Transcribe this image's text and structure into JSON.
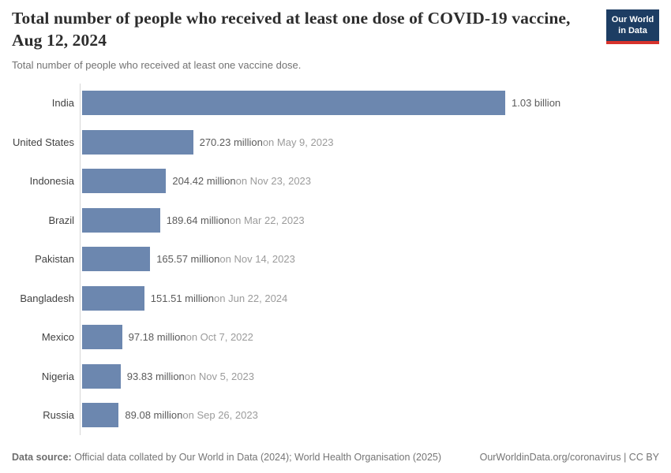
{
  "header": {
    "title": "Total number of people who received at least one dose of COVID-19 vaccine, Aug 12, 2024",
    "subtitle": "Total number of people who received at least one vaccine dose.",
    "logo": {
      "line1": "Our World",
      "line2": "in Data",
      "bg_color": "#1d3d63",
      "accent_color": "#d7332c"
    }
  },
  "chart_data": {
    "type": "bar",
    "orientation": "horizontal",
    "title": "Total number of people who received at least one dose of COVID-19 vaccine, Aug 12, 2024",
    "subtitle": "Total number of people who received at least one vaccine dose.",
    "xlabel": "",
    "ylabel": "",
    "xlim_millions": [
      0,
      1030
    ],
    "grid": false,
    "bar_color": "#6c87af",
    "categories": [
      "India",
      "United States",
      "Indonesia",
      "Brazil",
      "Pakistan",
      "Bangladesh",
      "Mexico",
      "Nigeria",
      "Russia"
    ],
    "values_millions": [
      1030,
      270.23,
      204.42,
      189.64,
      165.57,
      151.51,
      97.18,
      93.83,
      89.08
    ],
    "bars": [
      {
        "country": "India",
        "value_millions": 1030,
        "value_label": "1.03 billion",
        "date_label": ""
      },
      {
        "country": "United States",
        "value_millions": 270.23,
        "value_label": "270.23 million",
        "date_label": "on May 9, 2023"
      },
      {
        "country": "Indonesia",
        "value_millions": 204.42,
        "value_label": "204.42 million",
        "date_label": "on Nov 23, 2023"
      },
      {
        "country": "Brazil",
        "value_millions": 189.64,
        "value_label": "189.64 million",
        "date_label": "on Mar 22, 2023"
      },
      {
        "country": "Pakistan",
        "value_millions": 165.57,
        "value_label": "165.57 million",
        "date_label": "on Nov 14, 2023"
      },
      {
        "country": "Bangladesh",
        "value_millions": 151.51,
        "value_label": "151.51 million",
        "date_label": "on Jun 22, 2024"
      },
      {
        "country": "Mexico",
        "value_millions": 97.18,
        "value_label": "97.18 million",
        "date_label": "on Oct 7, 2022"
      },
      {
        "country": "Nigeria",
        "value_millions": 93.83,
        "value_label": "93.83 million",
        "date_label": "on Nov 5, 2023"
      },
      {
        "country": "Russia",
        "value_millions": 89.08,
        "value_label": "89.08 million",
        "date_label": "on Sep 26, 2023"
      }
    ]
  },
  "footer": {
    "datasource_label": "Data source:",
    "datasource_text": " Official data collated by Our World in Data (2024); World Health Organisation (2025)",
    "link_text": "OurWorldinData.org/coronavirus | CC BY"
  }
}
